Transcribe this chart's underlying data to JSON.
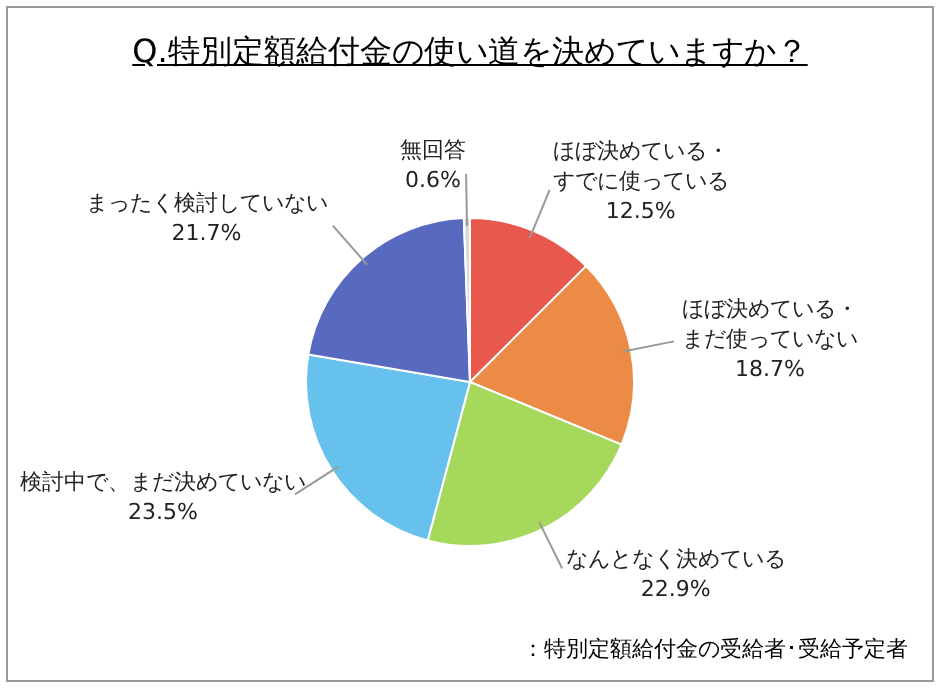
{
  "chart_data": {
    "type": "pie",
    "title": "Q.特別定額給付金の使い道を決めていますか？",
    "categories": [
      "ほぼ決めている・すでに使っている",
      "ほぼ決めている・まだ使っていない",
      "なんとなく決めている",
      "検討中で、まだ決めていない",
      "まったく検討していない",
      "無回答"
    ],
    "values": [
      12.5,
      18.7,
      22.9,
      23.5,
      21.7,
      0.6
    ],
    "value_labels": [
      "12.5%",
      "18.7%",
      "22.9%",
      "23.5%",
      "21.7%",
      "0.6%"
    ],
    "colors": [
      "#e8584c",
      "#ec8b45",
      "#a6d85c",
      "#66c2ec",
      "#5869c0",
      "#d9d9d9"
    ],
    "legend": false,
    "annotations": [
      "：特別定額給付金の受給者･受給予定者"
    ]
  }
}
